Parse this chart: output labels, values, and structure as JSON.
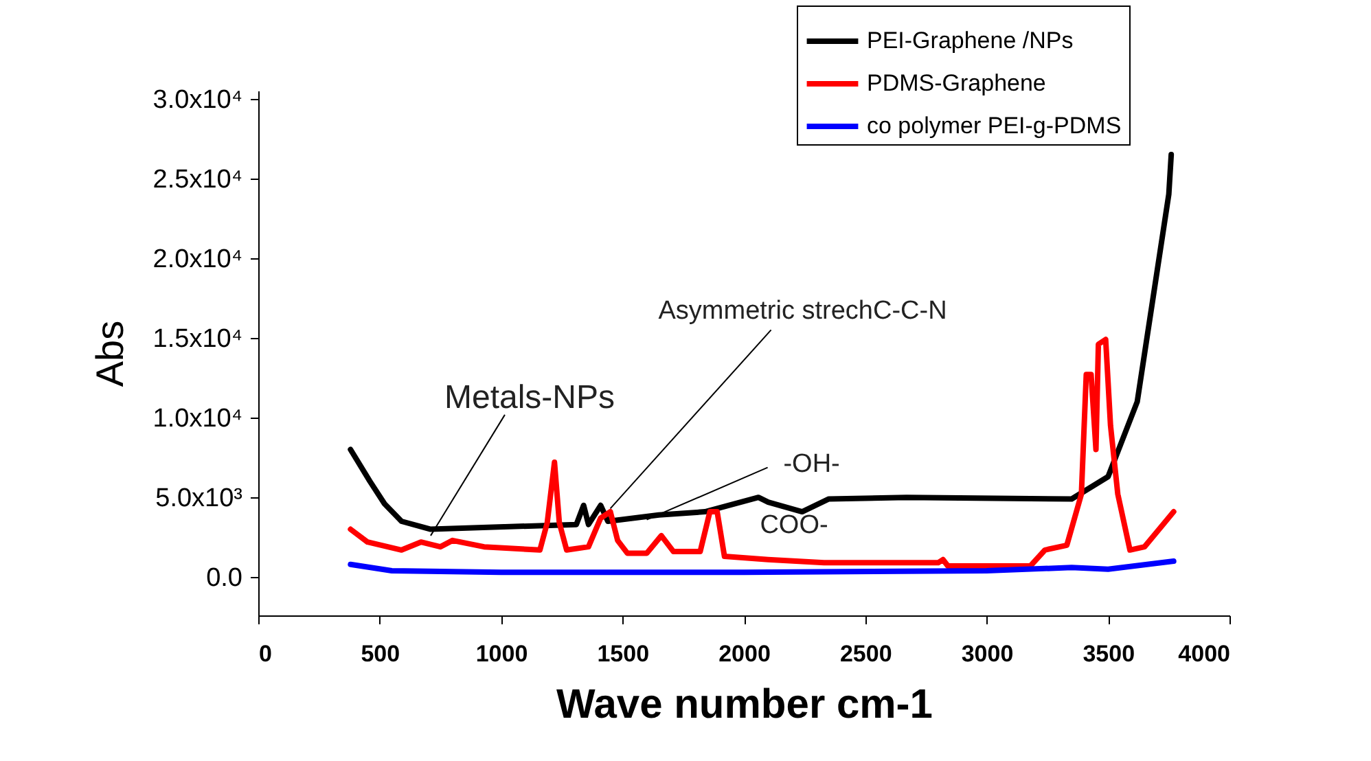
{
  "chart_data": {
    "type": "line",
    "xlabel": "Wave number cm-1",
    "ylabel": "Abs",
    "xlim": [
      0,
      4000
    ],
    "xticks": [
      0,
      500,
      1000,
      1500,
      2000,
      2500,
      3000,
      3500,
      4000
    ],
    "ylim": [
      -2400,
      30500
    ],
    "yticks": [
      {
        "value": 0,
        "label": "0.0"
      },
      {
        "value": 5000,
        "label": "5.0x10³"
      },
      {
        "value": 10000,
        "label": "1.0x10⁴"
      },
      {
        "value": 15000,
        "label": "1.5x10⁴"
      },
      {
        "value": 20000,
        "label": "2.0x10⁴"
      },
      {
        "value": 25000,
        "label": "2.5x10⁴"
      },
      {
        "value": 30000,
        "label": "3.0x10⁴"
      }
    ],
    "grid": false,
    "legend": "top right",
    "series": [
      {
        "name": "PEI-Graphene /NPs",
        "color": "#000000",
        "x": [
          380,
          460,
          520,
          590,
          710,
          1310,
          1340,
          1360,
          1410,
          1440,
          1650,
          1840,
          2060,
          2100,
          2240,
          2350,
          2670,
          3350,
          3500,
          3620,
          3690,
          3750,
          3760
        ],
        "values": [
          8000,
          6000,
          4600,
          3500,
          3000,
          3300,
          4500,
          3300,
          4500,
          3500,
          3900,
          4100,
          5000,
          4700,
          4100,
          4900,
          5000,
          4900,
          6300,
          11000,
          18000,
          24000,
          26500
        ]
      },
      {
        "name": "PDMS-Graphene",
        "color": "#ff0000",
        "x": [
          380,
          450,
          590,
          670,
          750,
          800,
          930,
          1160,
          1190,
          1220,
          1240,
          1270,
          1360,
          1410,
          1450,
          1480,
          1520,
          1600,
          1660,
          1710,
          1820,
          1860,
          1890,
          1920,
          2100,
          2330,
          2800,
          2820,
          2840,
          3180,
          3240,
          3330,
          3390,
          3410,
          3430,
          3450,
          3460,
          3490,
          3510,
          3540,
          3590,
          3650,
          3770
        ],
        "values": [
          3000,
          2200,
          1700,
          2200,
          1900,
          2300,
          1900,
          1700,
          3400,
          7200,
          3400,
          1700,
          1900,
          3700,
          4100,
          2300,
          1500,
          1500,
          2600,
          1600,
          1600,
          4100,
          4100,
          1300,
          1100,
          900,
          900,
          1100,
          700,
          700,
          1700,
          2000,
          5200,
          12700,
          12700,
          8000,
          14600,
          14900,
          9500,
          5200,
          1700,
          1900,
          4100
        ]
      },
      {
        "name": "co polymer PEI-g-PDMS",
        "color": "#0000ff",
        "x": [
          380,
          550,
          1000,
          2000,
          3000,
          3350,
          3500,
          3770
        ],
        "values": [
          800,
          400,
          300,
          300,
          400,
          600,
          500,
          1000
        ]
      }
    ],
    "annotations": [
      {
        "text": "Metals-NPs",
        "x": 710,
        "y": 2600
      },
      {
        "text": "Asymmetric strechC-C-N",
        "x": 1450,
        "y": 4300
      },
      {
        "text": "-OH-",
        "x": 1600,
        "y": 3600
      },
      "COO-"
    ]
  }
}
